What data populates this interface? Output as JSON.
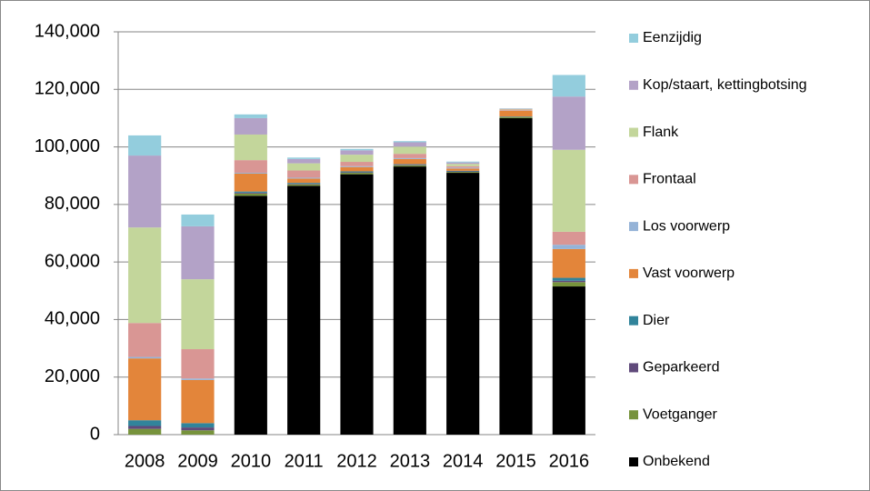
{
  "chart_data": {
    "type": "stacked_bar",
    "categories": [
      "2008",
      "2009",
      "2010",
      "2011",
      "2012",
      "2013",
      "2014",
      "2015",
      "2016"
    ],
    "series": [
      {
        "name": "Onbekend",
        "color": "#000000",
        "values": [
          0,
          0,
          83000,
          86500,
          90500,
          93200,
          91000,
          110000,
          51500
        ]
      },
      {
        "name": "Voetganger",
        "color": "#77933c",
        "values": [
          2000,
          1500,
          800,
          500,
          500,
          400,
          300,
          400,
          1500
        ]
      },
      {
        "name": "Geparkeerd",
        "color": "#604a7b",
        "values": [
          1000,
          1000,
          300,
          200,
          200,
          200,
          200,
          100,
          500
        ]
      },
      {
        "name": "Dier",
        "color": "#31849b",
        "values": [
          2000,
          1500,
          400,
          300,
          300,
          200,
          200,
          100,
          1000
        ]
      },
      {
        "name": "Vast voorwerp",
        "color": "#e3853a",
        "values": [
          21500,
          15000,
          6200,
          1500,
          1500,
          1800,
          800,
          2000,
          10000
        ]
      },
      {
        "name": "Los voorwerp",
        "color": "#95b3d7",
        "values": [
          500,
          500,
          300,
          300,
          300,
          300,
          300,
          100,
          1500
        ]
      },
      {
        "name": "Frontaal",
        "color": "#d99694",
        "values": [
          11800,
          10200,
          4400,
          2500,
          1500,
          1500,
          500,
          300,
          4500
        ]
      },
      {
        "name": "Flank",
        "color": "#c3d69b",
        "values": [
          33200,
          24300,
          8900,
          2500,
          2500,
          2500,
          800,
          200,
          28500
        ]
      },
      {
        "name": "Kop/staart, kettingbotsing",
        "color": "#b3a2c7",
        "values": [
          25000,
          18400,
          5700,
          1500,
          1500,
          1500,
          500,
          100,
          18500
        ]
      },
      {
        "name": "Eenzijdig",
        "color": "#93cddd",
        "values": [
          7000,
          4100,
          1300,
          500,
          500,
          400,
          300,
          100,
          7500
        ]
      }
    ],
    "ylim": [
      0,
      140000
    ],
    "yticks": [
      0,
      {
        "value": 20000,
        "label": "20,000"
      },
      {
        "value": 40000,
        "label": "40,000"
      },
      {
        "value": 60000,
        "label": "60,000"
      },
      {
        "value": 80000,
        "label": "80,000"
      },
      {
        "value": 100000,
        "label": "100,000"
      },
      {
        "value": 120000,
        "label": "120,000"
      },
      {
        "value": 140000,
        "label": "140,000"
      }
    ],
    "grid": true,
    "legend": "right"
  }
}
